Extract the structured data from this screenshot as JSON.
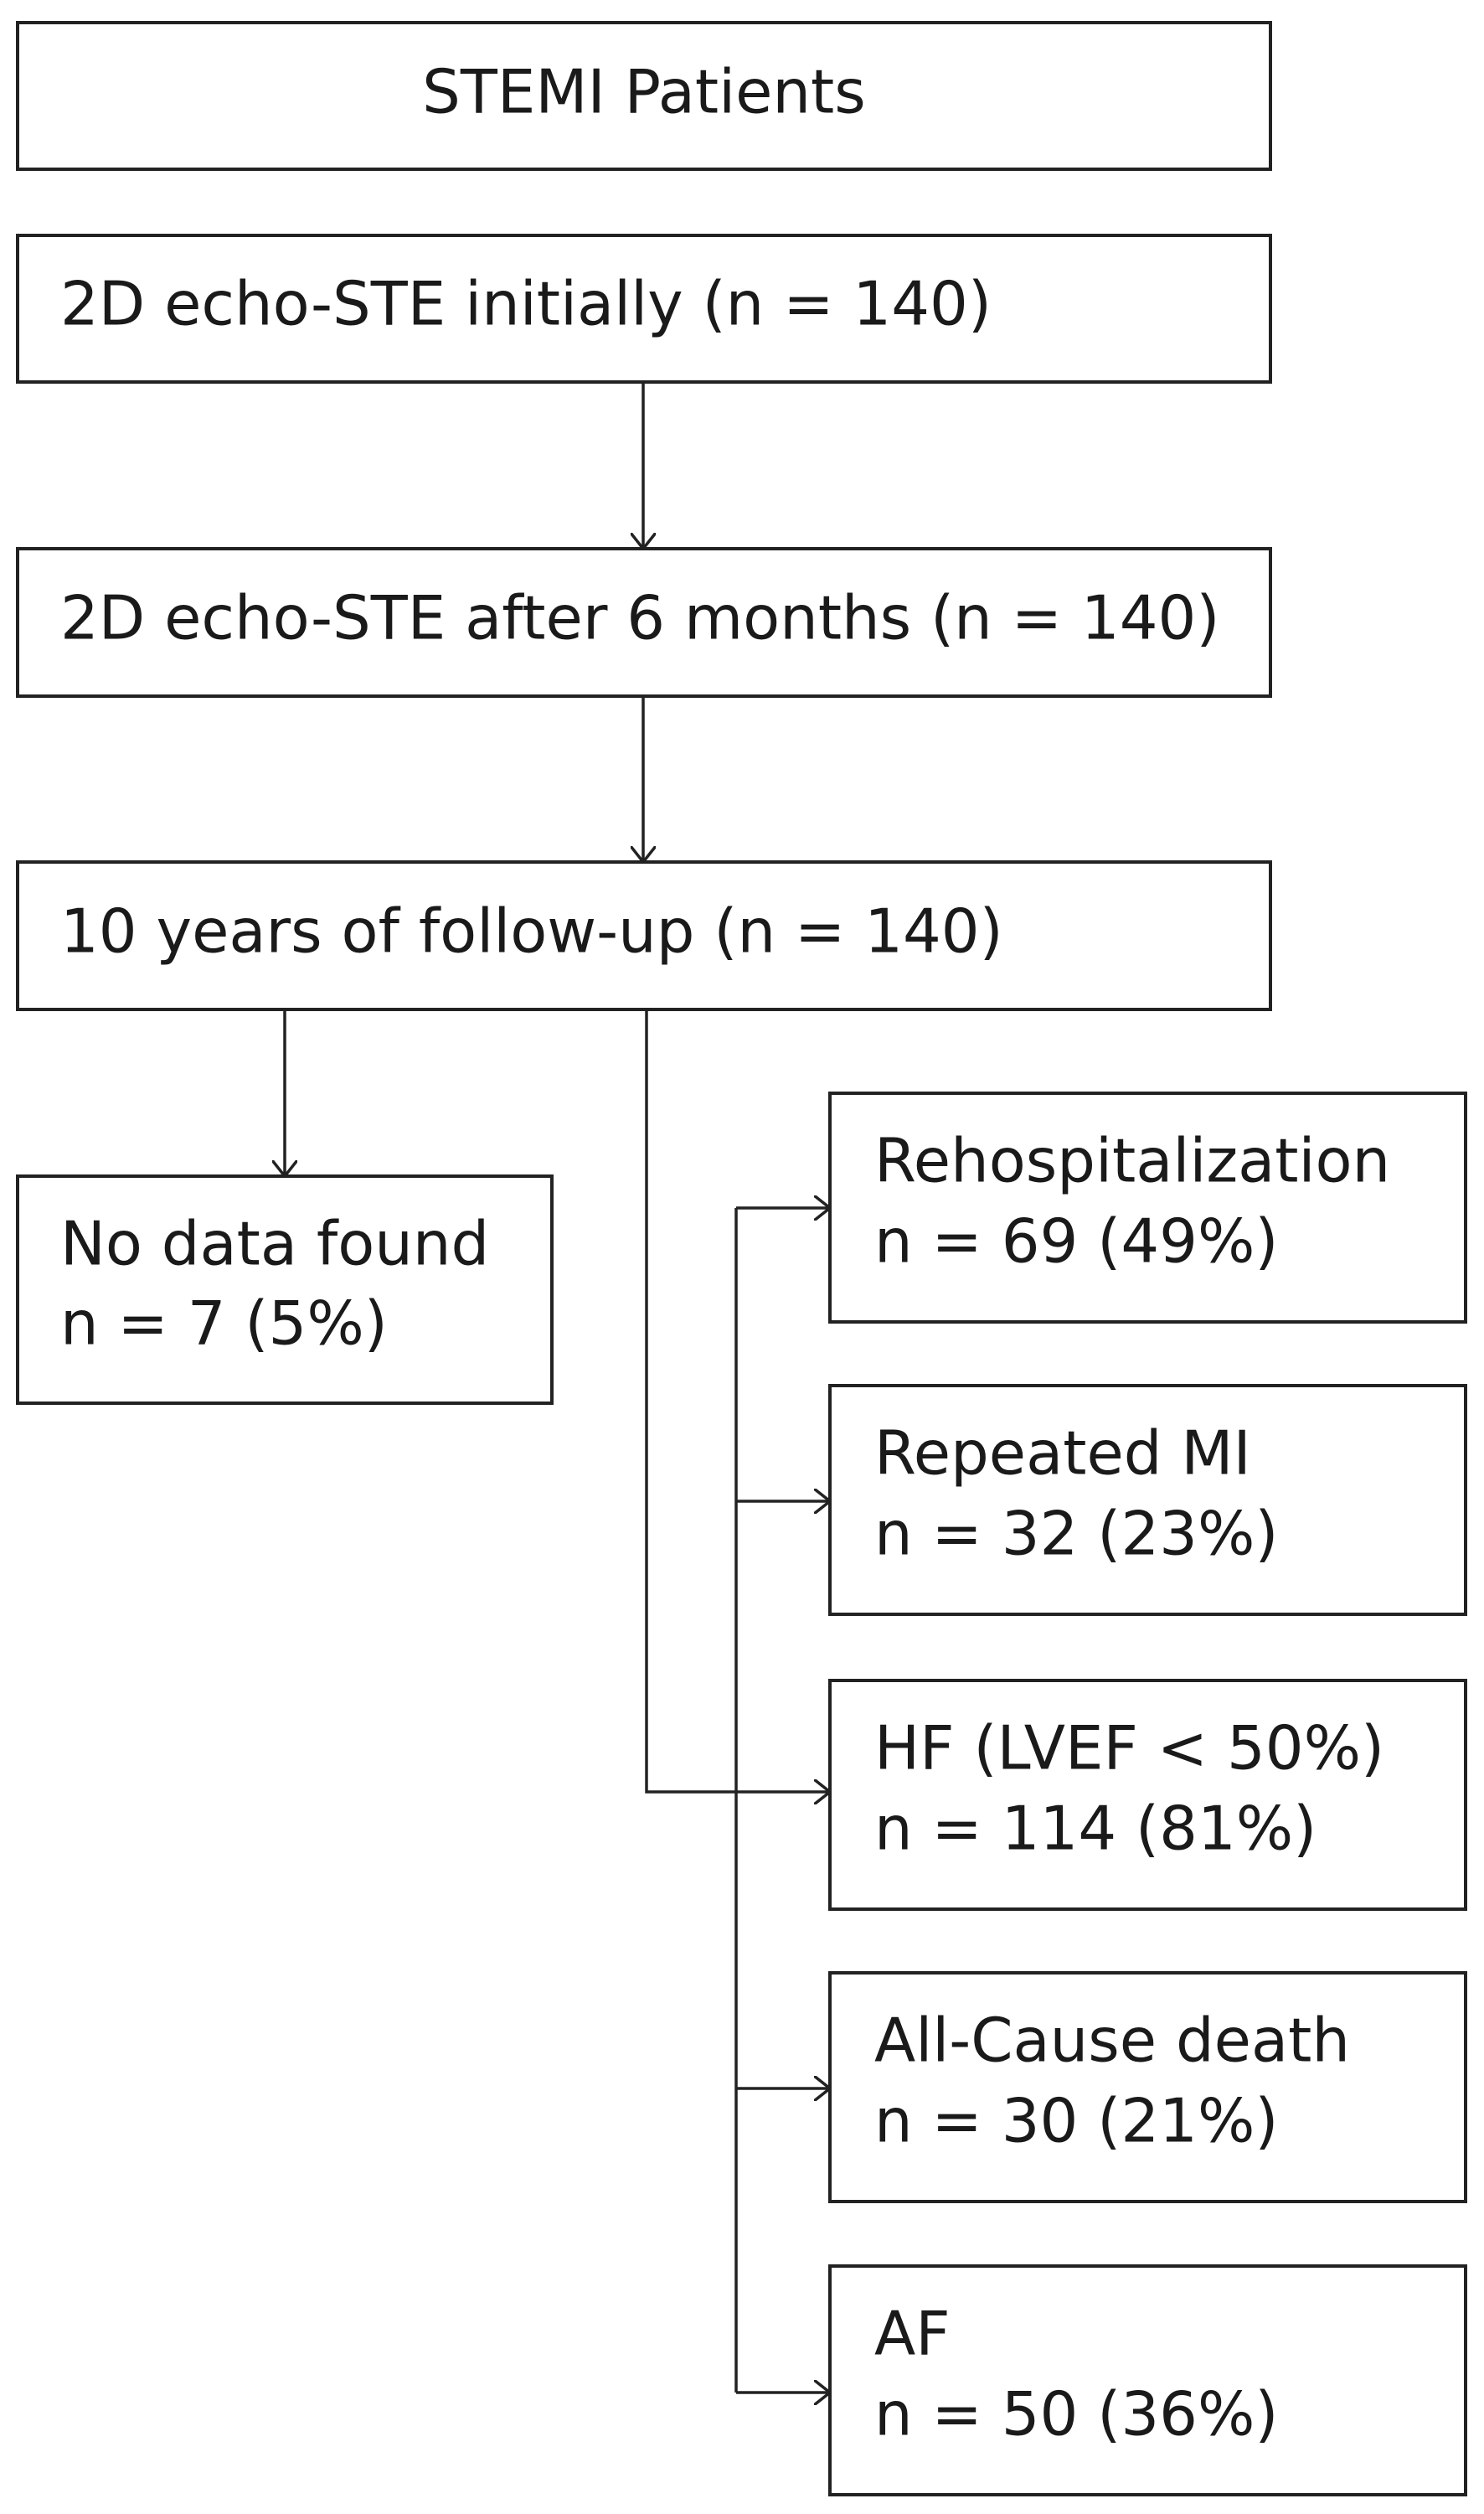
{
  "nodes": [
    {
      "label": "STEMI Patients"
    },
    {
      "label": "2D echo-STE initially (n = 140)"
    },
    {
      "label": "2D echo-STE after 6 months (n = 140)"
    },
    {
      "label": "10 years of follow-up (n = 140)"
    }
  ],
  "no_data": {
    "title": "No data found",
    "count": "n = 7 (5%)"
  },
  "outcomes": [
    {
      "title": "Rehospitalization",
      "count": "n = 69 (49%)"
    },
    {
      "title": "Repeated MI",
      "count": "n = 32 (23%)"
    },
    {
      "title": "HF (LVEF < 50%)",
      "count": "n = 114 (81%)"
    },
    {
      "title": "All-Cause death",
      "count": "n = 30 (21%)"
    },
    {
      "title": "AF",
      "count": "n = 50 (36%)"
    }
  ]
}
